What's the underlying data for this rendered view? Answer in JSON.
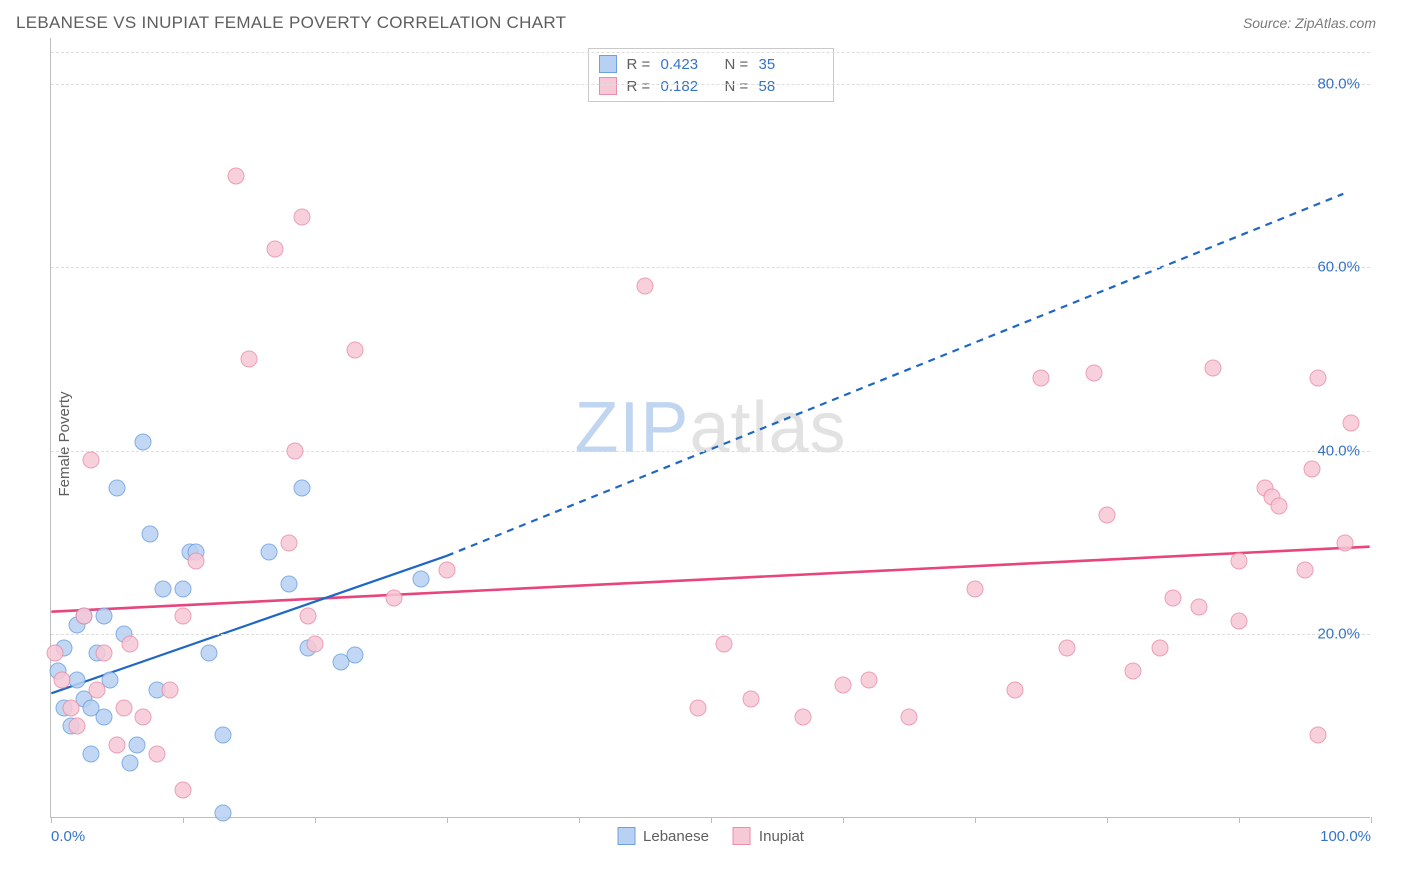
{
  "title": "LEBANESE VS INUPIAT FEMALE POVERTY CORRELATION CHART",
  "source": "Source: ZipAtlas.com",
  "watermark": {
    "bold": "ZIP",
    "light": "atlas"
  },
  "ylabel": "Female Poverty",
  "series": [
    {
      "key": "lebanese",
      "label": "Lebanese",
      "color_fill": "#b8d1f2",
      "color_stroke": "#6ea1e0",
      "line_color": "#1f66c5",
      "R": "0.423",
      "N": "35"
    },
    {
      "key": "inupiat",
      "label": "Inupiat",
      "color_fill": "#f7c8d6",
      "color_stroke": "#e98fab",
      "line_color": "#e7457c",
      "R": "0.182",
      "N": "58"
    }
  ],
  "legend_top_value_color": "#3573c8",
  "xlim": [
    0,
    100
  ],
  "ylim": [
    0,
    85
  ],
  "xticks": [
    0,
    10,
    20,
    30,
    40,
    50,
    60,
    70,
    80,
    90,
    100
  ],
  "xtick_labels": {
    "0": "0.0%",
    "100": "100.0%"
  },
  "yticks": [
    20,
    40,
    60,
    80
  ],
  "ytick_labels": {
    "20": "20.0%",
    "40": "40.0%",
    "60": "60.0%",
    "80": "80.0%"
  },
  "grid_color": "#dedede",
  "axis_color": "#bdbdbd",
  "background": "#ffffff",
  "tick_label_color": "#3573c8",
  "marker_radius": 8.5,
  "marker_opacity": 0.85,
  "trend_lines": {
    "lebanese": {
      "x1": 0,
      "y1": 13.5,
      "x2_solid": 30,
      "y2_solid": 28.5,
      "x2_dash": 98,
      "y2_dash": 68,
      "width": 2.2
    },
    "inupiat": {
      "x1": 0,
      "y1": 22.4,
      "x2_solid": 100,
      "y2_solid": 29.5,
      "width": 2.6
    }
  },
  "points": {
    "lebanese": [
      [
        0.5,
        16
      ],
      [
        1,
        12
      ],
      [
        1,
        18.5
      ],
      [
        1.5,
        10
      ],
      [
        2,
        15
      ],
      [
        2,
        21
      ],
      [
        2.5,
        13
      ],
      [
        2.5,
        22
      ],
      [
        3,
        7
      ],
      [
        3,
        12
      ],
      [
        3.5,
        18
      ],
      [
        4,
        22
      ],
      [
        4,
        11
      ],
      [
        4.5,
        15
      ],
      [
        5,
        36
      ],
      [
        5.5,
        20
      ],
      [
        6,
        6
      ],
      [
        6.5,
        8
      ],
      [
        7,
        41
      ],
      [
        7.5,
        31
      ],
      [
        8,
        14
      ],
      [
        8.5,
        25
      ],
      [
        10,
        25
      ],
      [
        10.5,
        29
      ],
      [
        11,
        29
      ],
      [
        12,
        18
      ],
      [
        13,
        9
      ],
      [
        13,
        0.5
      ],
      [
        16.5,
        29
      ],
      [
        18,
        25.5
      ],
      [
        19,
        36
      ],
      [
        19.5,
        18.5
      ],
      [
        22,
        17
      ],
      [
        23,
        17.8
      ],
      [
        28,
        26
      ]
    ],
    "inupiat": [
      [
        0.3,
        18
      ],
      [
        0.8,
        15
      ],
      [
        1.5,
        12
      ],
      [
        2,
        10
      ],
      [
        2.5,
        22
      ],
      [
        3,
        39
      ],
      [
        3.5,
        14
      ],
      [
        4,
        18
      ],
      [
        5,
        8
      ],
      [
        5.5,
        12
      ],
      [
        6,
        19
      ],
      [
        7,
        11
      ],
      [
        8,
        7
      ],
      [
        9,
        14
      ],
      [
        10,
        22
      ],
      [
        10,
        3
      ],
      [
        11,
        28
      ],
      [
        14,
        70
      ],
      [
        15,
        50
      ],
      [
        17,
        62
      ],
      [
        18,
        30
      ],
      [
        18.5,
        40
      ],
      [
        19,
        65.5
      ],
      [
        19.5,
        22
      ],
      [
        20,
        19
      ],
      [
        23,
        51
      ],
      [
        26,
        24
      ],
      [
        30,
        27
      ],
      [
        45,
        58
      ],
      [
        49,
        12
      ],
      [
        51,
        19
      ],
      [
        53,
        13
      ],
      [
        57,
        11
      ],
      [
        60,
        14.5
      ],
      [
        62,
        15
      ],
      [
        65,
        11
      ],
      [
        70,
        25
      ],
      [
        73,
        14
      ],
      [
        75,
        48
      ],
      [
        77,
        18.5
      ],
      [
        79,
        48.5
      ],
      [
        80,
        33
      ],
      [
        82,
        16
      ],
      [
        84,
        18.5
      ],
      [
        85,
        24
      ],
      [
        87,
        23
      ],
      [
        88,
        49
      ],
      [
        90,
        21.5
      ],
      [
        90,
        28
      ],
      [
        92,
        36
      ],
      [
        92.5,
        35
      ],
      [
        93,
        34
      ],
      [
        95,
        27
      ],
      [
        95.5,
        38
      ],
      [
        96,
        9
      ],
      [
        98,
        30
      ],
      [
        98.5,
        43
      ],
      [
        96,
        48
      ]
    ]
  }
}
